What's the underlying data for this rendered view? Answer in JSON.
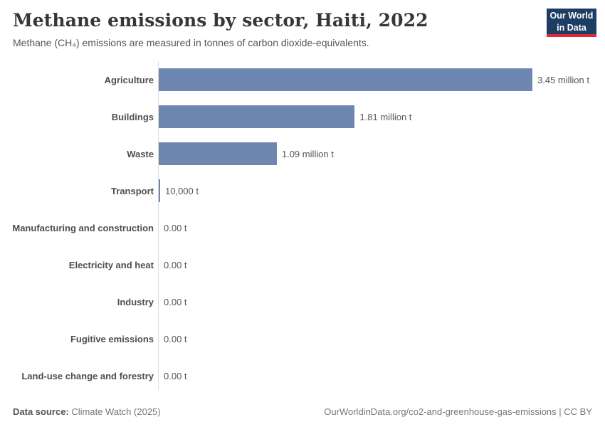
{
  "header": {
    "title": "Methane emissions by sector, Haiti, 2022",
    "subtitle": "Methane (CH₄) emissions are measured in tonnes of carbon dioxide-equivalents.",
    "logo_line1": "Our World",
    "logo_line2": "in Data"
  },
  "chart_data": {
    "type": "bar",
    "orientation": "horizontal",
    "title": "Methane emissions by sector, Haiti, 2022",
    "unit": "tonnes of carbon dioxide-equivalents",
    "categories": [
      "Agriculture",
      "Buildings",
      "Waste",
      "Transport",
      "Manufacturing and construction",
      "Electricity and heat",
      "Industry",
      "Fugitive emissions",
      "Land-use change and forestry"
    ],
    "values": [
      3450000,
      1810000,
      1090000,
      10000,
      0,
      0,
      0,
      0,
      0
    ],
    "value_labels": [
      "3.45 million t",
      "1.81 million t",
      "1.09 million t",
      "10,000 t",
      "0.00 t",
      "0.00 t",
      "0.00 t",
      "0.00 t",
      "0.00 t"
    ],
    "xlim": [
      0,
      3450000
    ],
    "bar_color": "#6d87b0",
    "grid": "off",
    "legend": "none"
  },
  "footer": {
    "datasource_label": "Data source:",
    "datasource_value": "Climate Watch (2025)",
    "credit": "OurWorldinData.org/co2-and-greenhouse-gas-emissions | CC BY"
  }
}
